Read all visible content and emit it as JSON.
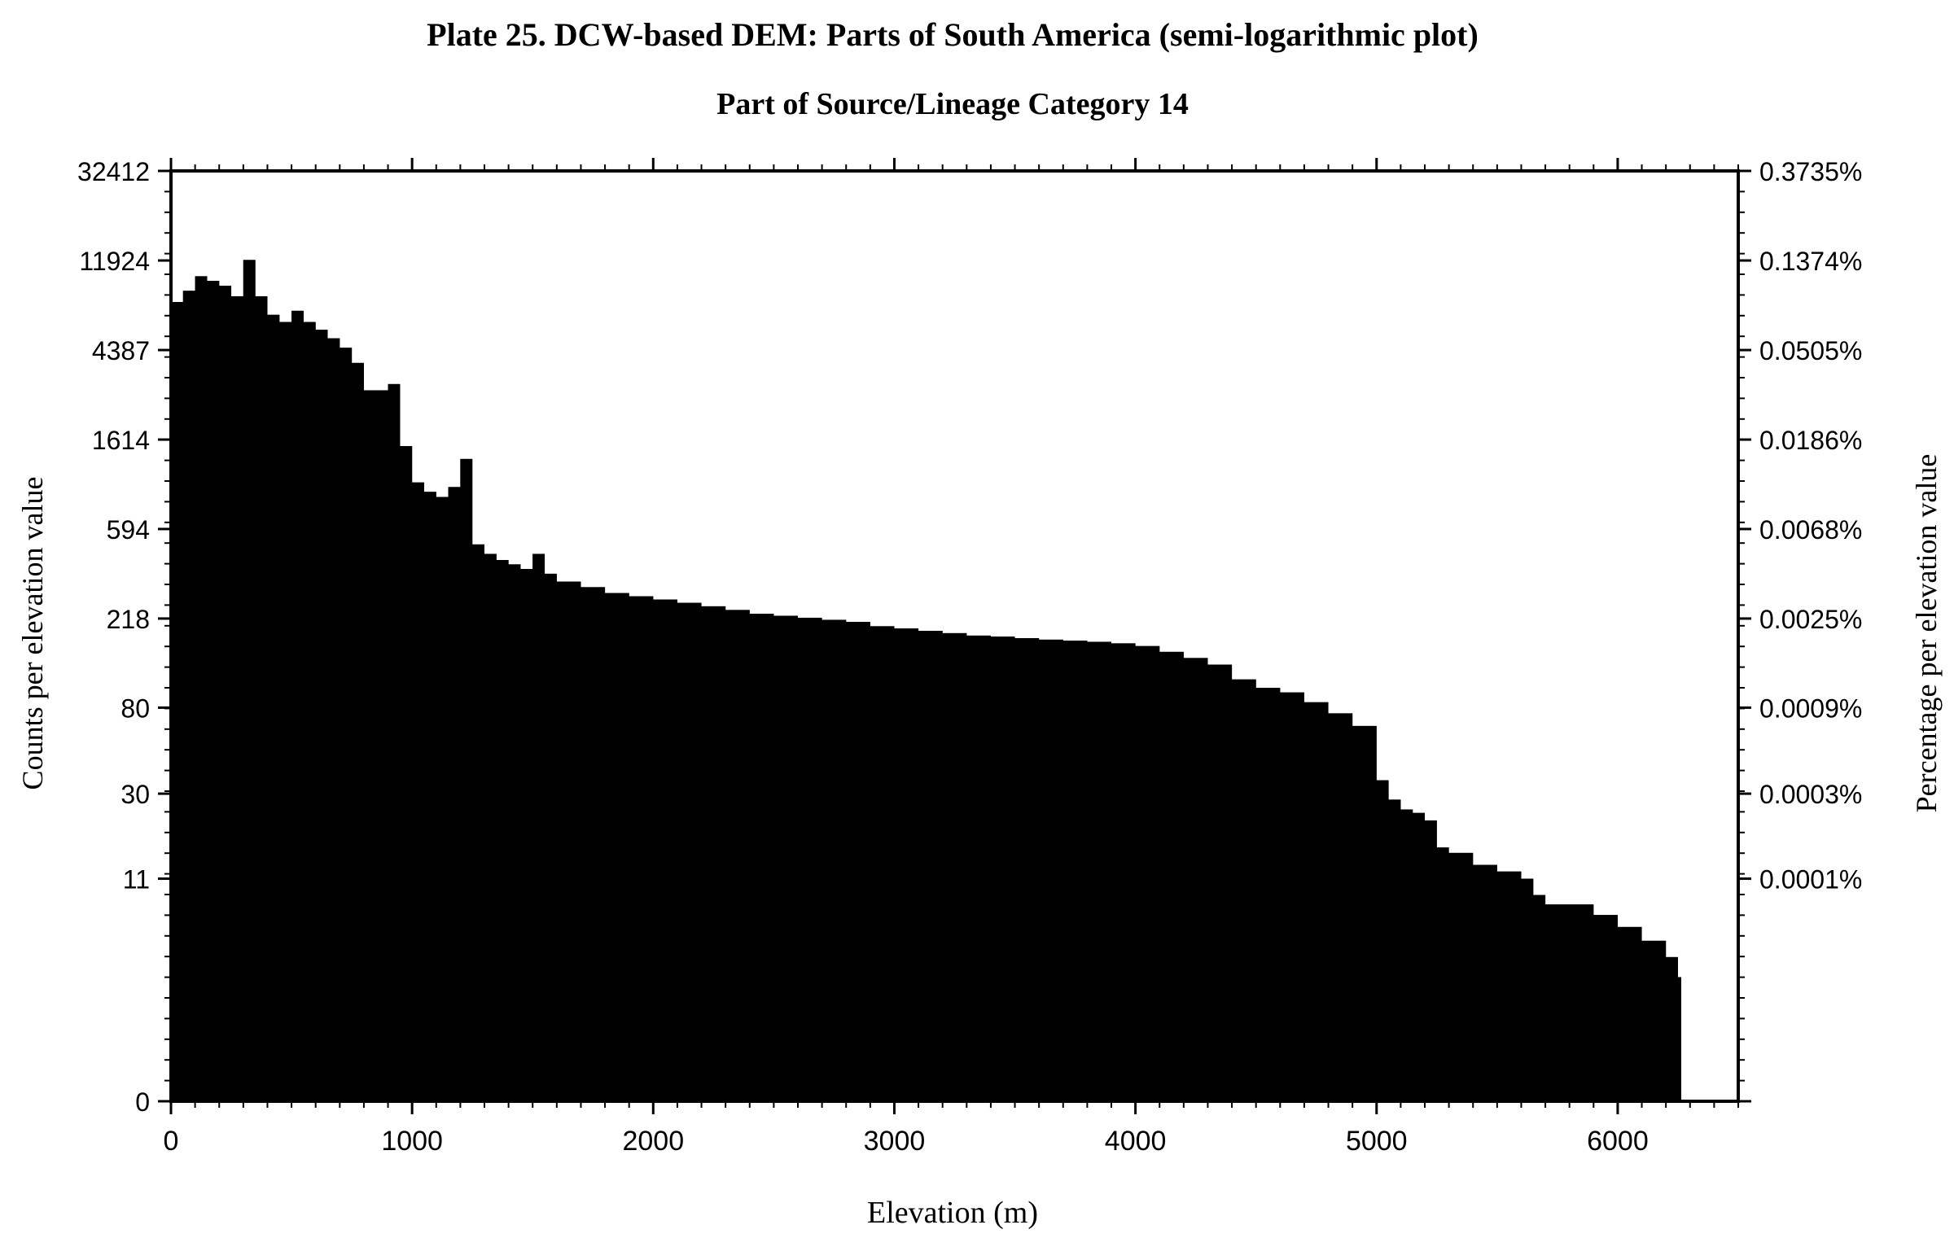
{
  "chart_data": {
    "type": "bar",
    "title": "Plate 25. DCW-based DEM: Parts of South America (semi-logarithmic plot)",
    "subtitle": "Part of Source/Lineage Category 14",
    "xlabel": "Elevation (m)",
    "ylabel": "Counts per elevation value",
    "ylabel_right": "Percentage per elevation value",
    "y_scale": "log",
    "xlim": [
      0,
      6500
    ],
    "ylim": [
      0,
      32412
    ],
    "x_ticks": [
      0,
      1000,
      2000,
      3000,
      4000,
      5000,
      6000
    ],
    "x_tick_labels": [
      "0",
      "1000",
      "2000",
      "3000",
      "4000",
      "5000",
      "6000"
    ],
    "y_ticks": [
      0,
      11,
      30,
      80,
      218,
      594,
      1614,
      4387,
      11924,
      32412
    ],
    "y_tick_labels": [
      "0",
      "11",
      "30",
      "80",
      "218",
      "594",
      "1614",
      "4387",
      "11924",
      "32412"
    ],
    "y_right_tick_labels": [
      "0.0001%",
      "0.0003%",
      "0.0009%",
      "0.0025%",
      "0.0068%",
      "0.0186%",
      "0.0505%",
      "0.1374%",
      "0.3735%"
    ],
    "grid": false,
    "legend": "none",
    "color": "#000000",
    "series": [
      {
        "x": [
          0,
          50,
          100,
          150,
          200,
          250,
          300,
          350,
          400,
          450,
          500,
          550,
          600,
          650,
          700,
          750,
          800,
          850,
          900,
          950,
          1000,
          1050,
          1100,
          1150,
          1200,
          1250,
          1300,
          1350,
          1400,
          1450,
          1500,
          1550,
          1600,
          1700,
          1800,
          1900,
          2000,
          2100,
          2200,
          2300,
          2400,
          2500,
          2600,
          2700,
          2800,
          2900,
          3000,
          3100,
          3200,
          3300,
          3400,
          3500,
          3600,
          3700,
          3800,
          3900,
          4000,
          4100,
          4200,
          4300,
          4400,
          4500,
          4600,
          4700,
          4800,
          4900,
          5000,
          5050,
          5100,
          5150,
          5200,
          5250,
          5300,
          5400,
          5500,
          5600,
          5650,
          5700,
          5800,
          5900,
          6000,
          6100,
          6200,
          6250
        ],
        "values": [
          7500,
          8500,
          10000,
          9500,
          9000,
          8000,
          12000,
          8000,
          6500,
          6000,
          6800,
          6000,
          5500,
          5000,
          4500,
          3800,
          2800,
          2800,
          3000,
          1500,
          1000,
          900,
          850,
          950,
          1300,
          500,
          450,
          420,
          400,
          380,
          450,
          360,
          330,
          310,
          290,
          280,
          270,
          260,
          250,
          240,
          230,
          225,
          220,
          215,
          210,
          200,
          195,
          190,
          185,
          180,
          178,
          175,
          172,
          170,
          168,
          165,
          160,
          150,
          140,
          130,
          110,
          100,
          95,
          85,
          75,
          65,
          35,
          28,
          25,
          24,
          22,
          16,
          15,
          13,
          12,
          11,
          9,
          8,
          8,
          7,
          6,
          5,
          4,
          3
        ]
      }
    ]
  }
}
